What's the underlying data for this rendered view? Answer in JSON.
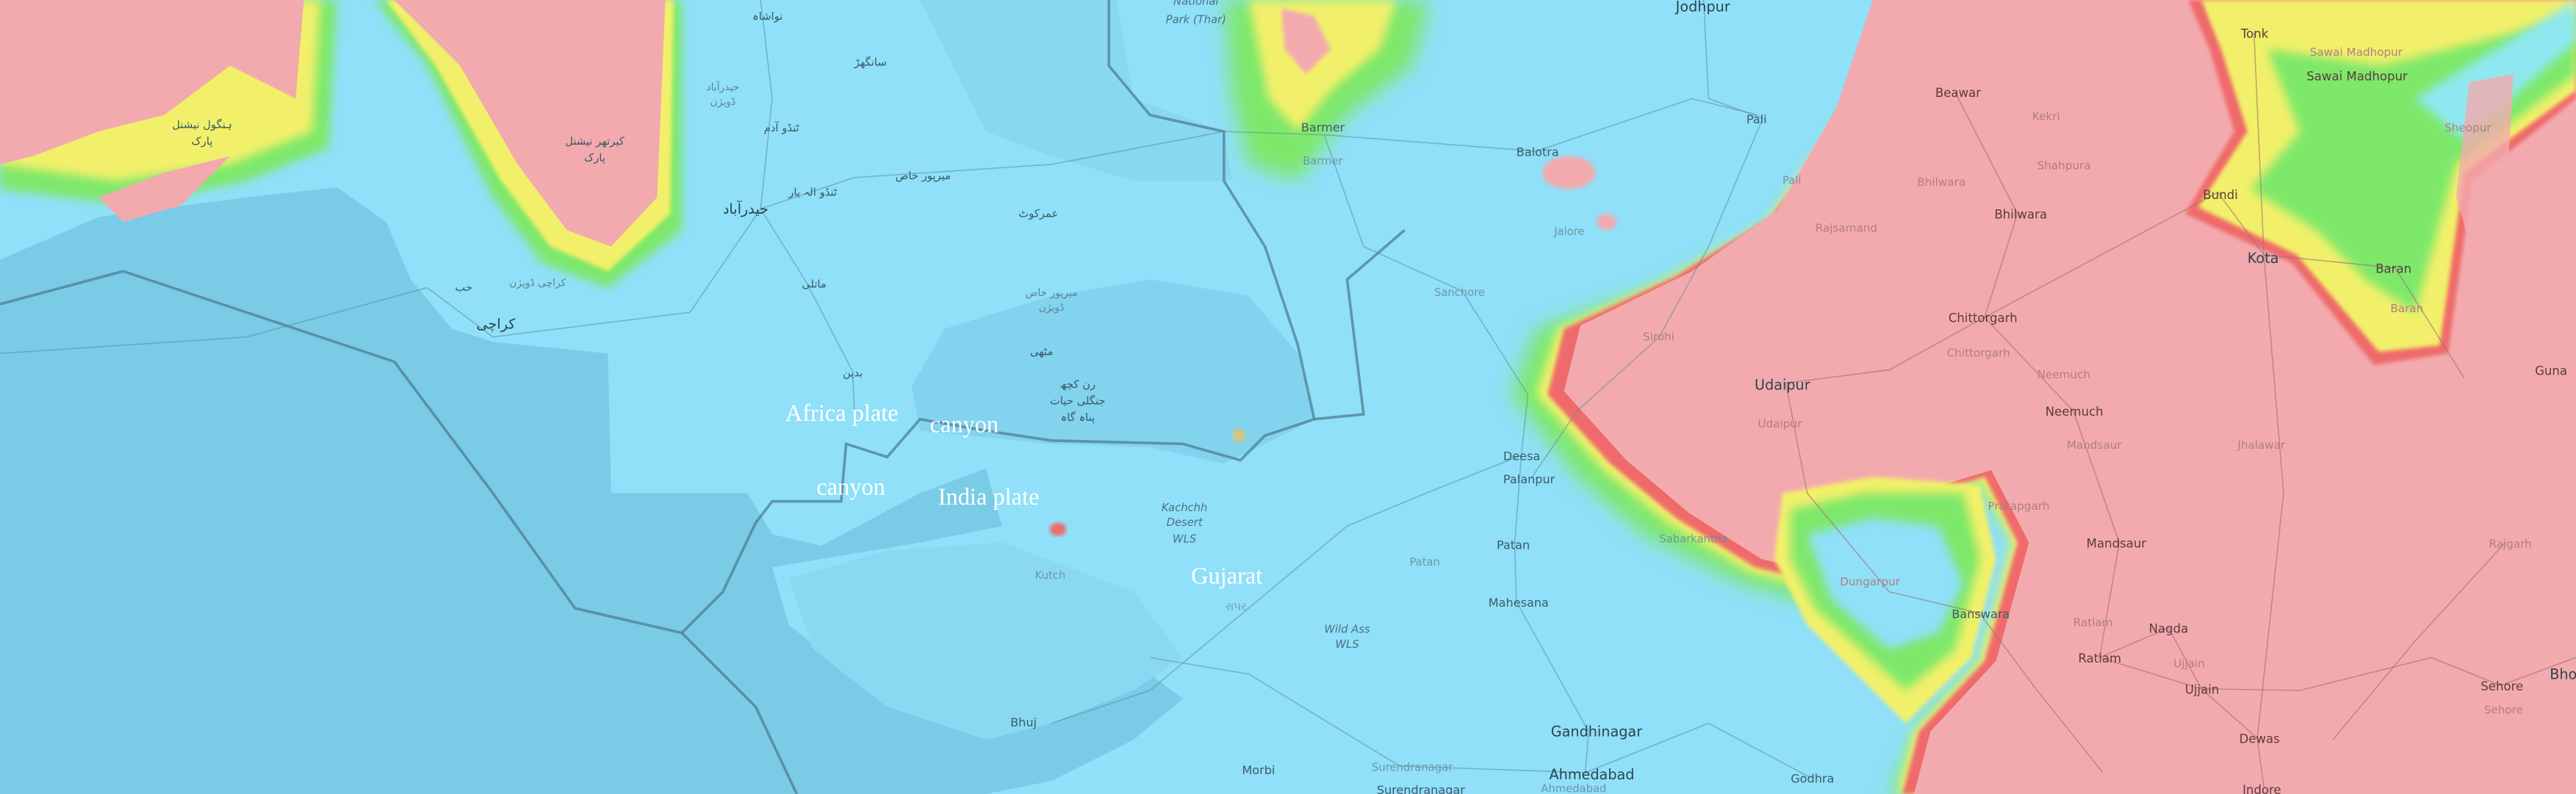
{
  "map": {
    "colors": {
      "land_low": "#8fe0f8",
      "sea": "#79cbe6",
      "highland": "#f3aaae",
      "mid_green": "#7ee86a",
      "mid_yellow": "#f2f06a",
      "ridge_red": "#ef6a6a"
    },
    "overlay_labels": {
      "africa_plate": "Africa plate",
      "canyon_1": "canyon",
      "canyon_2": "canyon",
      "india_plate": "India plate",
      "gujarat": "Gujarat"
    },
    "places": {
      "national_park_thar": [
        "National",
        "Park (Thar)"
      ],
      "jodhpur": "Jodhpur",
      "barmer": "Barmer",
      "barmer_district": "Barmer",
      "balotra": "Balotra",
      "pali": "Pali",
      "pali_district": "Pali",
      "jalore": "Jalore",
      "sanchore": "Sanchore",
      "sirohi": "Sirohi",
      "rajsamand": "Rajsamand",
      "beawar": "Beawar",
      "kekri": "Kekri",
      "shahpura": "Shahpura",
      "bhilwara": "Bhilwara",
      "bhilwara_district": "Bhilwara",
      "tonk": "Tonk",
      "sawai_madhopur": "Sawai Madhopur",
      "sawai_madhopur_district": "Sawai Madhopur",
      "sheopur": "Sheopur",
      "bundi": "Bundi",
      "kota": "Kota",
      "baran": "Baran",
      "baran_district": "Baran",
      "chittorgarh": "Chittorgarh",
      "chittorgarh_district": "Chittorgarh",
      "neemuch": "Neemuch",
      "neemuch_district": "Neemuch",
      "guna": "Guna",
      "udaipur": "Udaipur",
      "udaipur_district": "Udaipur",
      "deesa": "Deesa",
      "palanpur": "Palanpur",
      "patan": "Patan",
      "patan_district": "Patan",
      "mahesana": "Mahesana",
      "sabarkantha": "Sabarkantha",
      "dungarpur": "Dungarpur",
      "pratapgarh": "Pratapgarh",
      "mandsaur": "Mandsaur",
      "mandsaur_district": "Mandsaur",
      "banswara": "Banswara",
      "ratlam": "Ratlam",
      "ratlam_district": "Ratlam",
      "nagda": "Nagda",
      "ujjain": "Ujjain",
      "ujjain_district": "Ujjain",
      "jhalawar": "Jhalawar",
      "rajgarh": "Rajgarh",
      "dewas": "Dewas",
      "sehore": "Sehore",
      "sehore_district": "Sehore",
      "bhopal_partial": "Bho",
      "indore": "Indore",
      "gandhinagar": "Gandhinagar",
      "ahmedabad": "Ahmedabad",
      "ahmedabad_district": "Ahmedabad",
      "wild_ass_wls": [
        "Wild Ass",
        "WLS"
      ],
      "kachchh_desert_wls": [
        "Kachchh",
        "Desert",
        "WLS"
      ],
      "kutch": "Kutch",
      "bhuj": "Bhuj",
      "rapar": "રાપર",
      "morbi": "Morbi",
      "surendranagar": "Surendranagar",
      "surendranagar_district": "Surendranagar",
      "godhra": "Godhra",
      "nawabshah": "نواشاہ",
      "sanghar": "سانگھڑ",
      "tando_adam": "ٹنڈو آدم",
      "mirpur_khas": "میرپور خاص",
      "tando_allahyar": "ٹنڈو الہ یار",
      "hyderabad": "حیدرآباد",
      "umerkot": "عمرکوٹ",
      "matli": "ماتلی",
      "mirpur_khas_division": [
        "میرپور خاص",
        "ڈویژن"
      ],
      "mithi": "مٹھی",
      "badin": "بدین",
      "rann_of_kutch_wls": [
        "رن کچھ",
        "جنگلی حیات",
        "پناہ گاہ"
      ],
      "karachi": "کراچی",
      "hub": "حب",
      "karachi_division": "کراچی ڈویژن",
      "hingol_np": [
        "ہنگول نیشنل",
        "پارک"
      ],
      "kirthar_np": [
        "کیرتھر نیشنل",
        "پارک"
      ],
      "hyderabad_division": [
        "حیدرآباد",
        "ڈویژن"
      ]
    }
  }
}
